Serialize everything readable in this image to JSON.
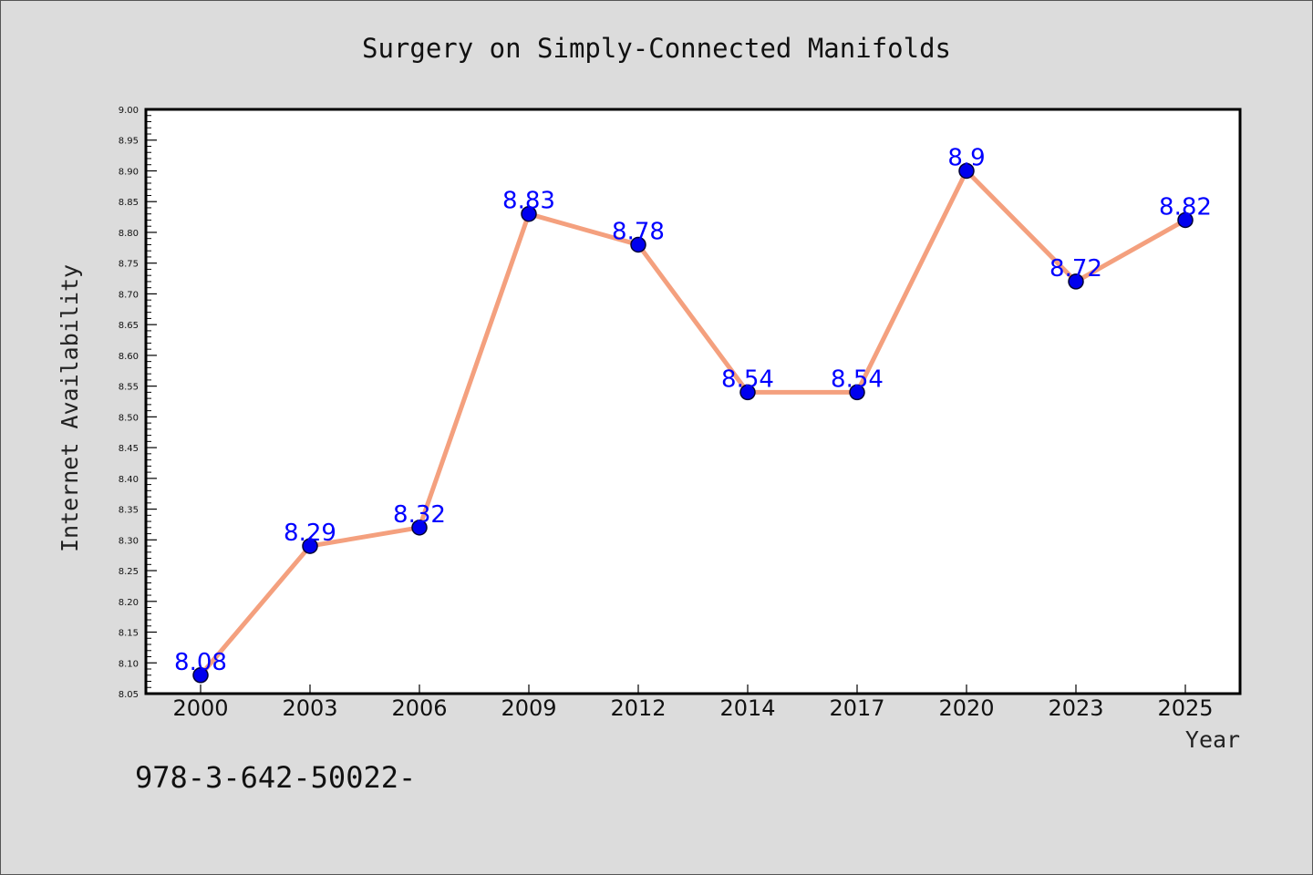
{
  "footer_text": "978-3-642-50022-",
  "chart_data": {
    "type": "line",
    "title": "Surgery on Simply-Connected Manifolds",
    "xlabel": "Year",
    "ylabel": "Internet Availability",
    "categories": [
      "2000",
      "2003",
      "2006",
      "2009",
      "2012",
      "2014",
      "2017",
      "2020",
      "2023",
      "2025"
    ],
    "series": [
      {
        "values": [
          8.08,
          8.29,
          8.32,
          8.83,
          8.78,
          8.54,
          8.54,
          8.9,
          8.72,
          8.82
        ],
        "data_labels": [
          "8.08",
          "8.29",
          "8.32",
          "8.83",
          "8.78",
          "8.54",
          "8.54",
          "8.9",
          "8.72",
          "8.82"
        ]
      }
    ],
    "ylim": [
      8.05,
      9.0
    ],
    "yticks": [
      "8.05",
      "8.10",
      "8.15",
      "8.20",
      "8.25",
      "8.30",
      "8.35",
      "8.40",
      "8.45",
      "8.50",
      "8.55",
      "8.60",
      "8.65",
      "8.70",
      "8.75",
      "8.80",
      "8.85",
      "8.90",
      "8.95",
      "9.00"
    ],
    "grid": false,
    "legend": "none",
    "colors": {
      "line": "#f4a07e",
      "marker": "#0000ee",
      "marker_edge": "#000033",
      "data_label": "#0000ff",
      "plot_background": "#ffffff",
      "page_background": "#dcdcdc"
    }
  }
}
